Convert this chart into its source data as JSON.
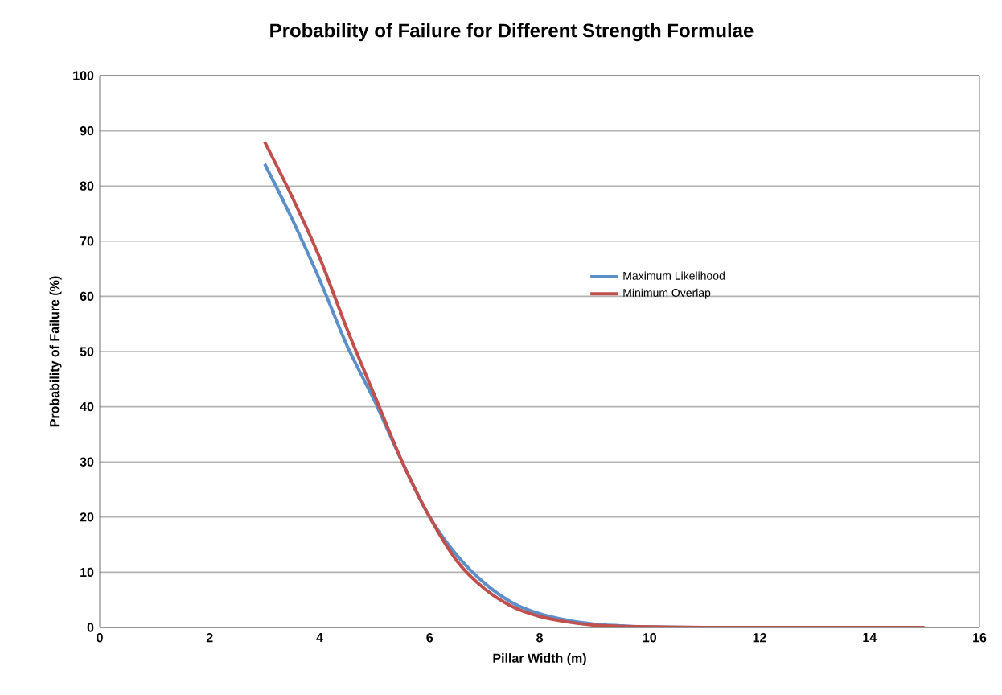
{
  "chart_data": {
    "type": "line",
    "title": "Probability of Failure for Different Strength Formulae",
    "xlabel": "Pillar Width (m)",
    "ylabel": "Probability of Failure (%)",
    "xlim": [
      0,
      16
    ],
    "xticks": [
      0,
      2,
      4,
      6,
      8,
      10,
      12,
      14,
      16
    ],
    "ylim": [
      0,
      100
    ],
    "yticks": [
      0,
      10,
      20,
      30,
      40,
      50,
      60,
      70,
      80,
      90,
      100
    ],
    "grid": "y",
    "legend": "right",
    "marker": "none",
    "series": [
      {
        "name": "Maximum Likelihood",
        "color": "#5b8fc9",
        "x": [
          3,
          3.5,
          4,
          4.5,
          5,
          5.5,
          6,
          6.5,
          7,
          7.5,
          8,
          8.5,
          9,
          9.5,
          10,
          11
        ],
        "values": [
          84,
          74,
          63,
          51,
          41,
          30,
          20,
          13,
          8,
          4.5,
          2.5,
          1.3,
          0.6,
          0.3,
          0.1,
          0
        ]
      },
      {
        "name": "Minimum Overlap",
        "color": "#c0504d",
        "x": [
          3,
          3.5,
          4,
          4.5,
          5,
          5.5,
          6,
          6.5,
          7,
          7.5,
          8,
          8.5,
          9,
          9.5,
          10,
          11,
          12,
          13,
          14,
          15
        ],
        "values": [
          88,
          78,
          67,
          54,
          42,
          30,
          20,
          12,
          7,
          3.8,
          2,
          1,
          0.4,
          0.2,
          0.1,
          0,
          0,
          0,
          0,
          0
        ]
      }
    ]
  }
}
